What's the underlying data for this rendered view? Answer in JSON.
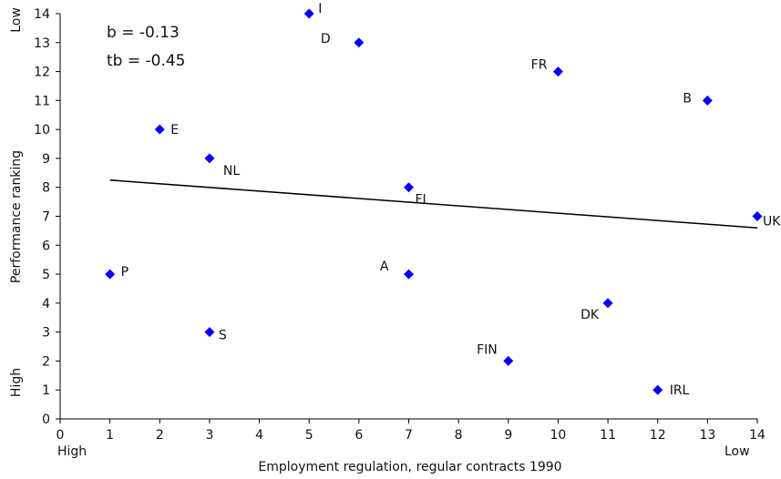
{
  "chart_data": {
    "type": "scatter",
    "xlabel": "Employment regulation, regular contracts 1990",
    "ylabel": "Performance ranking",
    "xlim": [
      0,
      14
    ],
    "ylim": [
      0,
      14
    ],
    "x_ticks": [
      "0",
      "1",
      "2",
      "3",
      "4",
      "5",
      "6",
      "7",
      "8",
      "9",
      "10",
      "11",
      "12",
      "13",
      "14"
    ],
    "y_ticks": [
      "0",
      "1",
      "2",
      "3",
      "4",
      "5",
      "6",
      "7",
      "8",
      "9",
      "10",
      "11",
      "12",
      "13",
      "14"
    ],
    "x_end_labels": {
      "left": "High",
      "right": "Low"
    },
    "y_end_labels": {
      "bottom": "High",
      "top": "Low"
    },
    "stats": {
      "b": "b = -0.13",
      "tb": "tb = -0.45"
    },
    "marker_color": "#0000ff",
    "points": [
      {
        "label": "I",
        "x": 5,
        "y": 14
      },
      {
        "label": "D",
        "x": 6,
        "y": 13
      },
      {
        "label": "FR",
        "x": 10,
        "y": 12
      },
      {
        "label": "B",
        "x": 13,
        "y": 11
      },
      {
        "label": "E",
        "x": 2,
        "y": 10
      },
      {
        "label": "NL",
        "x": 3,
        "y": 9
      },
      {
        "label": "FI",
        "x": 7,
        "y": 8
      },
      {
        "label": "UK",
        "x": 14,
        "y": 7
      },
      {
        "label": "P",
        "x": 1,
        "y": 5
      },
      {
        "label": "A",
        "x": 7,
        "y": 5
      },
      {
        "label": "DK",
        "x": 11,
        "y": 4
      },
      {
        "label": "S",
        "x": 3,
        "y": 3
      },
      {
        "label": "FIN",
        "x": 9,
        "y": 2
      },
      {
        "label": "IRL",
        "x": 12,
        "y": 1
      }
    ],
    "trendline": {
      "x": [
        1,
        14
      ],
      "y": [
        8.25,
        6.6
      ]
    }
  }
}
